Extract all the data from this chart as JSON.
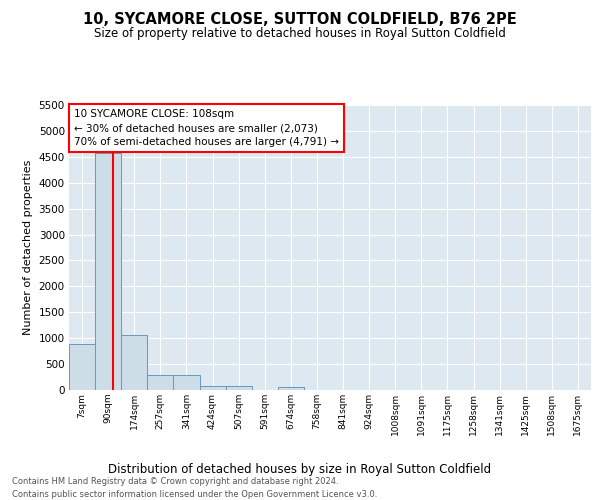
{
  "title": "10, SYCAMORE CLOSE, SUTTON COLDFIELD, B76 2PE",
  "subtitle": "Size of property relative to detached houses in Royal Sutton Coldfield",
  "xlabel": "Distribution of detached houses by size in Royal Sutton Coldfield",
  "ylabel": "Number of detached properties",
  "bin_labels": [
    "7sqm",
    "90sqm",
    "174sqm",
    "257sqm",
    "341sqm",
    "424sqm",
    "507sqm",
    "591sqm",
    "674sqm",
    "758sqm",
    "841sqm",
    "924sqm",
    "1008sqm",
    "1091sqm",
    "1175sqm",
    "1258sqm",
    "1341sqm",
    "1425sqm",
    "1508sqm",
    "1675sqm"
  ],
  "bar_heights": [
    880,
    4570,
    1060,
    290,
    290,
    80,
    80,
    0,
    60,
    0,
    0,
    0,
    0,
    0,
    0,
    0,
    0,
    0,
    0,
    0
  ],
  "bar_color": "#ccdde8",
  "bar_edge_color": "#6699bb",
  "background_color": "#dde8f0",
  "grid_color": "#ffffff",
  "annotation_line1": "10 SYCAMORE CLOSE: 108sqm",
  "annotation_line2": "← 30% of detached houses are smaller (2,073)",
  "annotation_line3": "70% of semi-detached houses are larger (4,791) →",
  "annotation_box_color": "red",
  "property_line_color": "red",
  "property_line_x": 1.17,
  "ylim": [
    0,
    5500
  ],
  "yticks": [
    0,
    500,
    1000,
    1500,
    2000,
    2500,
    3000,
    3500,
    4000,
    4500,
    5000,
    5500
  ],
  "footer_line1": "Contains HM Land Registry data © Crown copyright and database right 2024.",
  "footer_line2": "Contains public sector information licensed under the Open Government Licence v3.0."
}
